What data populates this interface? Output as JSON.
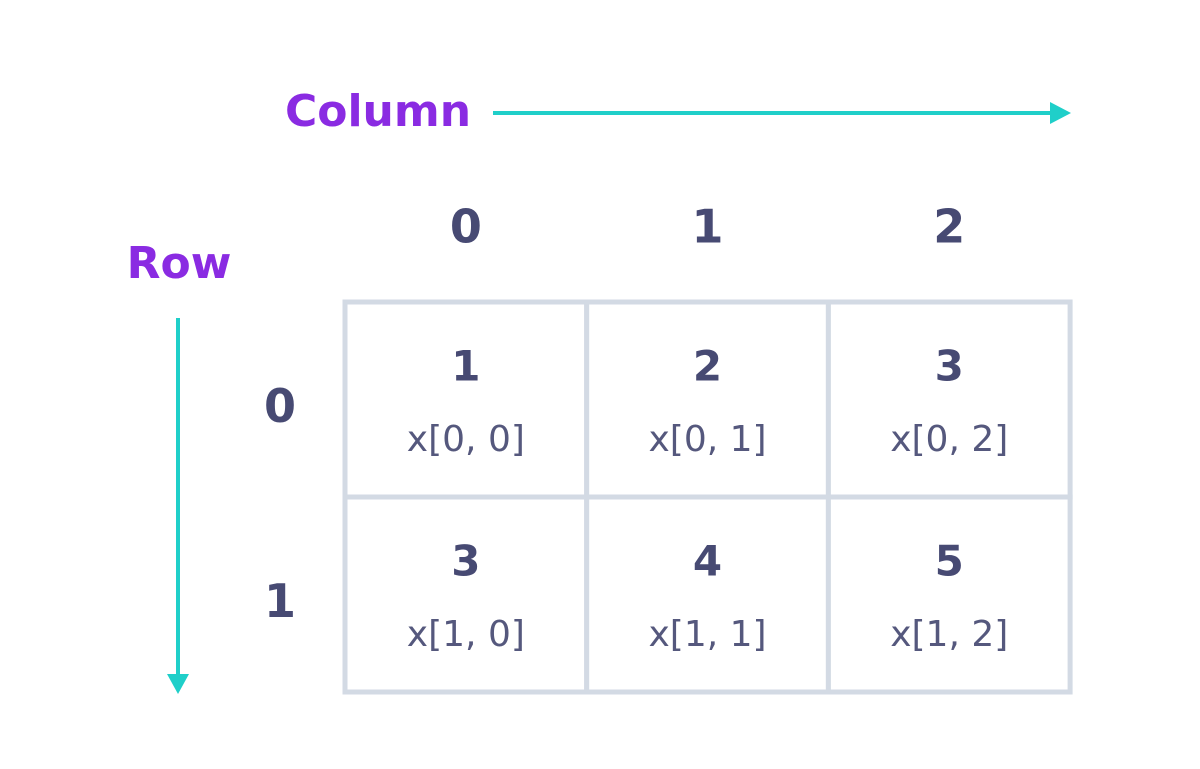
{
  "column_label": "Column",
  "row_label": "Row",
  "column_headers": [
    "0",
    "1",
    "2"
  ],
  "row_headers": [
    "0",
    "1"
  ],
  "cells": [
    [
      {
        "value": "1",
        "index": "x[0, 0]"
      },
      {
        "value": "2",
        "index": "x[0, 1]"
      },
      {
        "value": "3",
        "index": "x[0, 2]"
      }
    ],
    [
      {
        "value": "3",
        "index": "x[1, 0]"
      },
      {
        "value": "4",
        "index": "x[1, 1]"
      },
      {
        "value": "5",
        "index": "x[1, 2]"
      }
    ]
  ]
}
